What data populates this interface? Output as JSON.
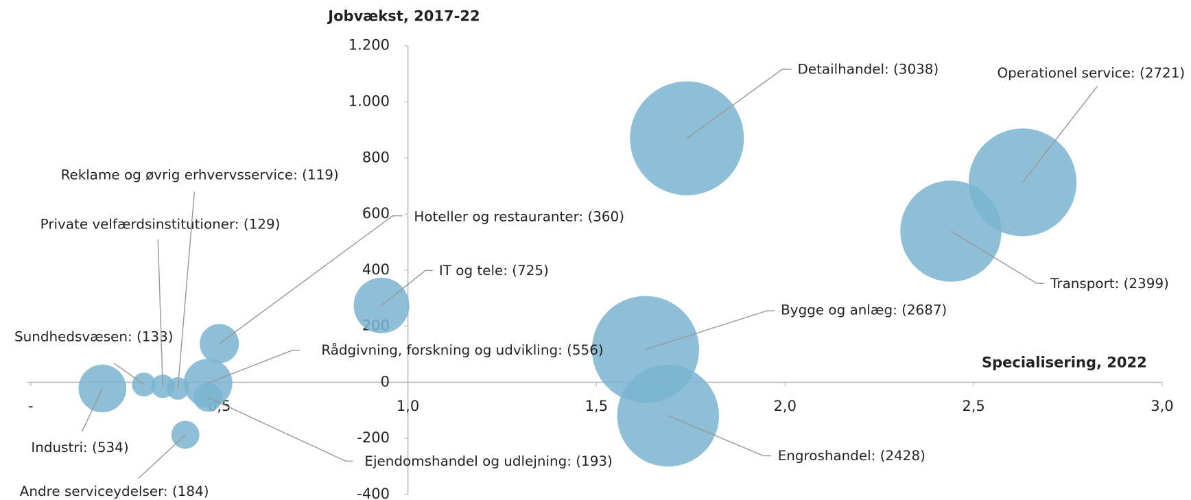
{
  "chart_data": {
    "type": "bubble",
    "y_label": "Jobvækst, 2017-22",
    "x_label": "Specialisering, 2022",
    "color": "#7ab4d0",
    "xlim": [
      0,
      3
    ],
    "ylim": [
      -400,
      1200
    ],
    "xticks": [
      {
        "value": 0,
        "label": "-"
      },
      {
        "value": 0.5,
        "label": "0,5"
      },
      {
        "value": 1,
        "label": "1,0"
      },
      {
        "value": 1.5,
        "label": "1,5"
      },
      {
        "value": 2,
        "label": "2,0"
      },
      {
        "value": 2.5,
        "label": "2,5"
      },
      {
        "value": 3,
        "label": "3,0"
      }
    ],
    "yticks": [
      {
        "value": 1200,
        "label": "1.200"
      },
      {
        "value": 1000,
        "label": "1.000"
      },
      800,
      600,
      400,
      200,
      0,
      -200,
      -400
    ],
    "x": [
      1.74,
      2.63,
      2.44,
      1.63,
      1.69,
      0.93,
      0.5,
      0.47,
      0.47,
      0.3,
      0.35,
      0.39,
      0.19,
      0.41
    ],
    "values": [
      870,
      713,
      539,
      117,
      -119,
      274,
      138,
      -3,
      -54,
      -8,
      -14,
      -22,
      -22,
      -187
    ],
    "sizes": [
      3038,
      2721,
      2399,
      2687,
      2428,
      725,
      360,
      556,
      193,
      133,
      129,
      119,
      534,
      184
    ],
    "value_labels": [
      "Detailhandel: (3038)",
      "Operationel service: (2721)",
      "Transport: (2399)",
      "Bygge og anlæg: (2687)",
      "Engroshandel: (2428)",
      "IT og tele: (725)",
      "Hoteller og restauranter: (360)",
      "Rådgivning, forskning og udvikling: (556)",
      "Ejendomshandel og udlejning: (193)",
      "Sundhedsvæsen: (133)",
      "Private velfærdsinstitutioner: (129)",
      "Reklame og øvrig erhvervsservice: (119)",
      "Industri: (534)",
      "Andre serviceydelser: (184)"
    ]
  }
}
